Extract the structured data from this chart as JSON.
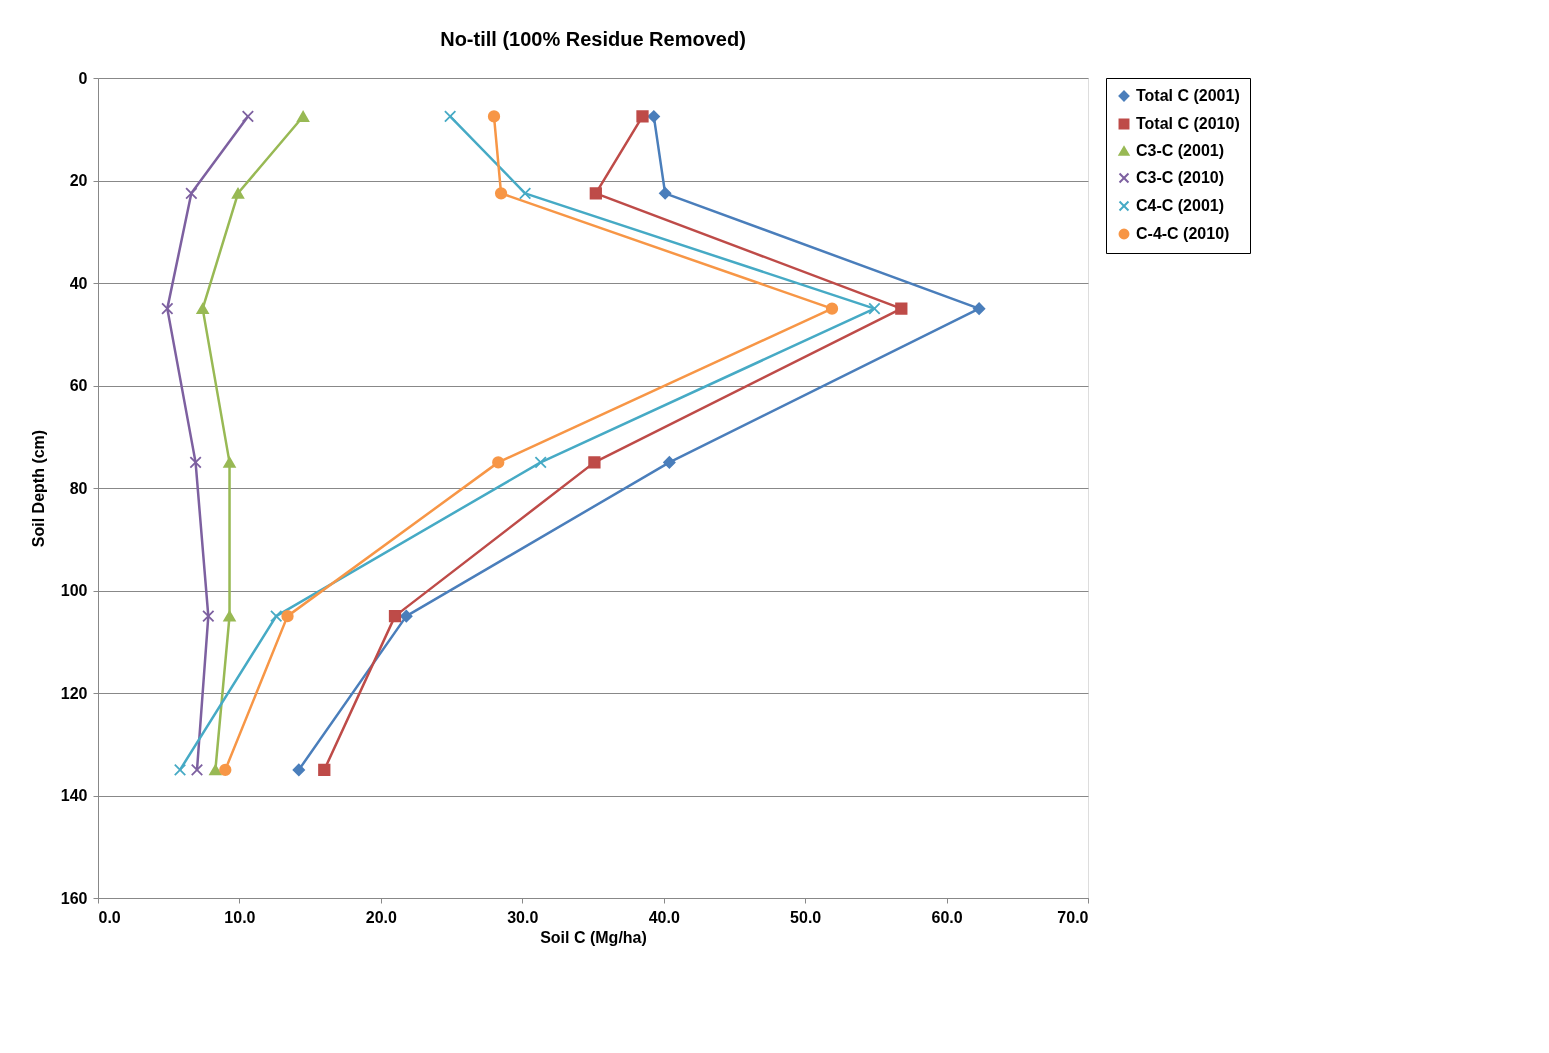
{
  "chart_data": {
    "type": "line",
    "title": "No-till (100% Residue Removed)",
    "xlabel": "Soil C (Mg/ha)",
    "ylabel": "Soil Depth (cm)",
    "xlim": [
      0,
      70
    ],
    "xticks": [
      {
        "value": 0,
        "label": "0.0"
      },
      {
        "value": 10,
        "label": "10.0"
      },
      {
        "value": 20,
        "label": "20.0"
      },
      {
        "value": 30,
        "label": "30.0"
      },
      {
        "value": 40,
        "label": "40.0"
      },
      {
        "value": 50,
        "label": "50.0"
      },
      {
        "value": 60,
        "label": "60.0"
      },
      {
        "value": 70,
        "label": "70.0"
      }
    ],
    "ylim": [
      160,
      0
    ],
    "yticks": [
      0,
      20,
      40,
      60,
      80,
      100,
      120,
      140,
      160
    ],
    "grid": "y",
    "legend": "right",
    "line_style": "solid",
    "series": [
      {
        "name": "Total C (2001)",
        "color": "#4a7ebb",
        "marker": "diamond",
        "x": [
          39.3,
          40.1,
          62.3,
          40.4,
          21.8,
          14.2
        ],
        "values": [
          7.5,
          22.5,
          45,
          75,
          105,
          135
        ]
      },
      {
        "name": "Total C (2010)",
        "color": "#be4b48",
        "marker": "square",
        "x": [
          38.5,
          35.2,
          56.8,
          35.1,
          21.0,
          16.0
        ],
        "values": [
          7.5,
          22.5,
          45,
          75,
          105,
          135
        ]
      },
      {
        "name": "C3-C (2001)",
        "color": "#98b954",
        "marker": "triangle",
        "x": [
          14.5,
          9.9,
          7.4,
          9.3,
          9.3,
          8.3
        ],
        "values": [
          7.5,
          22.5,
          45,
          75,
          105,
          135
        ]
      },
      {
        "name": "C3-C (2010)",
        "color": "#7d60a0",
        "marker": "cross",
        "x": [
          10.6,
          6.6,
          4.9,
          6.9,
          7.8,
          7.0
        ],
        "values": [
          7.5,
          22.5,
          45,
          75,
          105,
          135
        ]
      },
      {
        "name": "C4-C (2001)",
        "color": "#46aac5",
        "marker": "cross",
        "x": [
          24.9,
          30.2,
          54.9,
          31.3,
          12.6,
          5.8
        ],
        "values": [
          7.5,
          22.5,
          45,
          75,
          105,
          135
        ]
      },
      {
        "name": "C-4-C (2010)",
        "color": "#f79646",
        "marker": "circle",
        "x": [
          28.0,
          28.5,
          51.9,
          28.3,
          13.4,
          9.0
        ],
        "values": [
          7.5,
          22.5,
          45,
          75,
          105,
          135
        ]
      }
    ]
  }
}
